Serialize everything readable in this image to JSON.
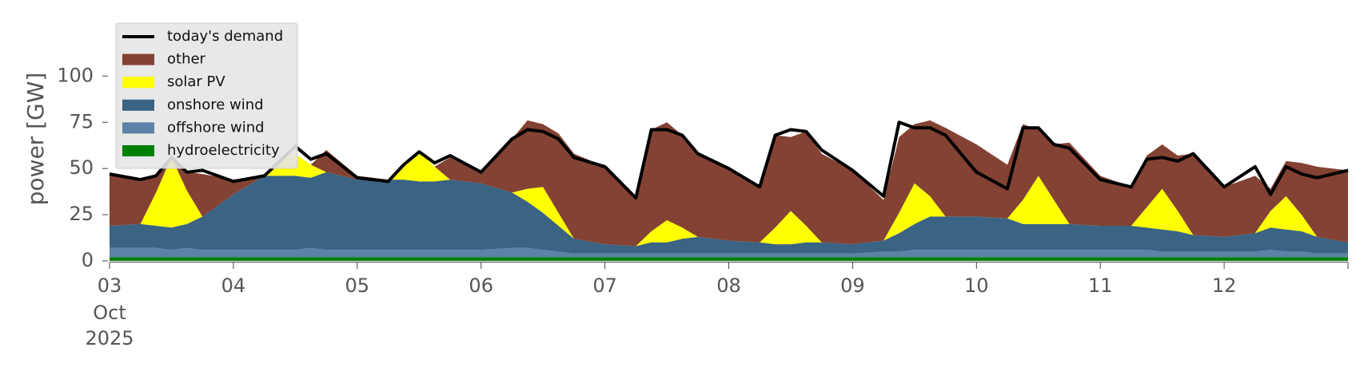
{
  "chart_data": {
    "type": "area",
    "ylabel": "power [GW]",
    "xlabel": "",
    "ylim": [
      0,
      120
    ],
    "xlim": [
      "2025-10-03T00:00",
      "2025-10-13T00:00"
    ],
    "yticks": [
      0,
      25,
      50,
      75,
      100
    ],
    "xticks": [
      {
        "label": "03",
        "sub": [
          "Oct",
          "2025"
        ],
        "date": "2025-10-03"
      },
      {
        "label": "04",
        "date": "2025-10-04"
      },
      {
        "label": "05",
        "date": "2025-10-05"
      },
      {
        "label": "06",
        "date": "2025-10-06"
      },
      {
        "label": "07",
        "date": "2025-10-07"
      },
      {
        "label": "08",
        "date": "2025-10-08"
      },
      {
        "label": "09",
        "date": "2025-10-09"
      },
      {
        "label": "10",
        "date": "2025-10-10"
      },
      {
        "label": "11",
        "date": "2025-10-11"
      },
      {
        "label": "12",
        "date": "2025-10-12"
      }
    ],
    "legend_position": "top-left",
    "grid": false,
    "x": [
      "2025-10-03 00:00",
      "2025-10-03 06:00",
      "2025-10-03 09:00",
      "2025-10-03 12:00",
      "2025-10-03 15:00",
      "2025-10-03 18:00",
      "2025-10-04 00:00",
      "2025-10-04 06:00",
      "2025-10-04 09:00",
      "2025-10-04 12:00",
      "2025-10-04 15:00",
      "2025-10-04 18:00",
      "2025-10-05 00:00",
      "2025-10-05 06:00",
      "2025-10-05 09:00",
      "2025-10-05 12:00",
      "2025-10-05 15:00",
      "2025-10-05 18:00",
      "2025-10-06 00:00",
      "2025-10-06 06:00",
      "2025-10-06 09:00",
      "2025-10-06 12:00",
      "2025-10-06 15:00",
      "2025-10-06 18:00",
      "2025-10-07 00:00",
      "2025-10-07 06:00",
      "2025-10-07 09:00",
      "2025-10-07 12:00",
      "2025-10-07 15:00",
      "2025-10-07 18:00",
      "2025-10-08 00:00",
      "2025-10-08 06:00",
      "2025-10-08 09:00",
      "2025-10-08 12:00",
      "2025-10-08 15:00",
      "2025-10-08 18:00",
      "2025-10-09 00:00",
      "2025-10-09 06:00",
      "2025-10-09 09:00",
      "2025-10-09 12:00",
      "2025-10-09 15:00",
      "2025-10-09 18:00",
      "2025-10-10 00:00",
      "2025-10-10 06:00",
      "2025-10-10 09:00",
      "2025-10-10 12:00",
      "2025-10-10 15:00",
      "2025-10-10 18:00",
      "2025-10-11 00:00",
      "2025-10-11 06:00",
      "2025-10-11 09:00",
      "2025-10-11 12:00",
      "2025-10-11 15:00",
      "2025-10-11 18:00",
      "2025-10-12 00:00",
      "2025-10-12 06:00",
      "2025-10-12 09:00",
      "2025-10-12 12:00",
      "2025-10-12 15:00",
      "2025-10-12 18:00",
      "2025-10-13 00:00"
    ],
    "series": [
      {
        "name": "hydroelectricity",
        "color": "#008000",
        "kind": "area",
        "values": [
          2,
          2,
          2,
          2,
          2,
          2,
          2,
          2,
          2,
          2,
          2,
          2,
          2,
          2,
          2,
          2,
          2,
          2,
          2,
          2,
          2,
          2,
          2,
          2,
          2,
          2,
          2,
          2,
          2,
          2,
          2,
          2,
          2,
          2,
          2,
          2,
          2,
          2,
          2,
          2,
          2,
          2,
          2,
          2,
          2,
          2,
          2,
          2,
          2,
          2,
          2,
          2,
          2,
          2,
          2,
          2,
          2,
          2,
          2,
          2,
          2
        ]
      },
      {
        "name": "offshore wind",
        "color": "#5c82a6",
        "kind": "area",
        "values": [
          5,
          5,
          5,
          4,
          5,
          4,
          4,
          4,
          4,
          4,
          5,
          4,
          4,
          4,
          4,
          4,
          4,
          4,
          4,
          5,
          5,
          4,
          3,
          2,
          2,
          2,
          2,
          2,
          2,
          2,
          2,
          2,
          2,
          2,
          2,
          2,
          2,
          3,
          3,
          4,
          4,
          4,
          4,
          4,
          4,
          4,
          4,
          4,
          4,
          4,
          4,
          3,
          3,
          3,
          3,
          3,
          4,
          3,
          3,
          2,
          2
        ]
      },
      {
        "name": "onshore wind",
        "color": "#3a6384",
        "kind": "area",
        "values": [
          12,
          13,
          12,
          12,
          13,
          18,
          30,
          40,
          40,
          40,
          38,
          42,
          38,
          38,
          38,
          37,
          37,
          38,
          36,
          30,
          25,
          20,
          14,
          8,
          5,
          4,
          6,
          6,
          8,
          9,
          7,
          6,
          5,
          5,
          6,
          6,
          5,
          6,
          10,
          14,
          18,
          18,
          18,
          17,
          14,
          14,
          14,
          14,
          13,
          13,
          12,
          12,
          11,
          9,
          8,
          10,
          12,
          12,
          11,
          9,
          6
        ]
      },
      {
        "name": "solar PV",
        "color": "#ffff00",
        "kind": "area",
        "values": [
          0,
          0,
          18,
          38,
          18,
          0,
          0,
          0,
          8,
          12,
          7,
          0,
          0,
          0,
          8,
          16,
          8,
          0,
          0,
          0,
          7,
          14,
          7,
          0,
          0,
          0,
          6,
          12,
          6,
          0,
          0,
          0,
          9,
          18,
          9,
          0,
          0,
          0,
          11,
          22,
          11,
          0,
          0,
          0,
          13,
          26,
          13,
          0,
          0,
          0,
          11,
          22,
          11,
          0,
          0,
          0,
          9,
          18,
          9,
          0,
          0
        ]
      },
      {
        "name": "other",
        "color": "#834233",
        "kind": "area",
        "values": [
          28,
          24,
          9,
          0,
          10,
          23,
          8,
          0,
          0,
          0,
          0,
          12,
          2,
          0,
          0,
          0,
          0,
          12,
          6,
          29,
          37,
          34,
          43,
          46,
          42,
          26,
          55,
          53,
          50,
          45,
          39,
          30,
          50,
          40,
          51,
          48,
          40,
          22,
          41,
          32,
          41,
          48,
          39,
          29,
          41,
          25,
          30,
          44,
          27,
          21,
          28,
          24,
          30,
          44,
          27,
          31,
          12,
          19,
          28,
          38,
          39
        ]
      },
      {
        "name": "today's demand",
        "color": "#000000",
        "kind": "line",
        "values": [
          47,
          44,
          46,
          56,
          48,
          49,
          43,
          46,
          54,
          62,
          55,
          58,
          45,
          43,
          52,
          59,
          53,
          57,
          48,
          66,
          71,
          70,
          66,
          56,
          51,
          34,
          71,
          71,
          68,
          58,
          50,
          40,
          68,
          71,
          70,
          60,
          49,
          35,
          75,
          72,
          72,
          68,
          48,
          39,
          72,
          72,
          63,
          61,
          44,
          40,
          55,
          56,
          54,
          58,
          40,
          51,
          36,
          51,
          47,
          45,
          49
        ]
      }
    ]
  }
}
